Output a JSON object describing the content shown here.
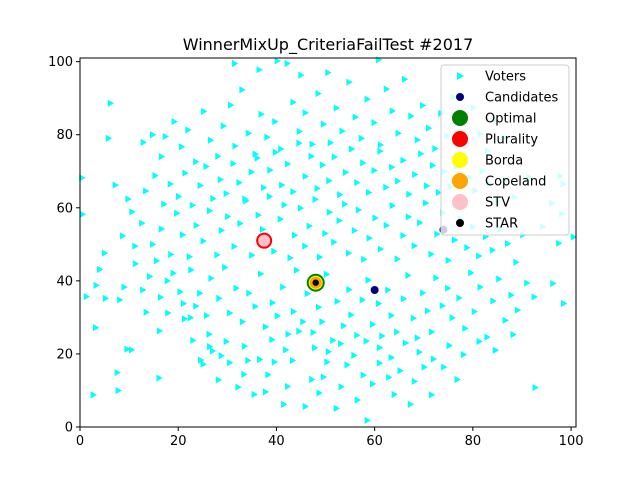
{
  "chart_data": {
    "type": "scatter",
    "title": "WinnerMixUp_CriteriaFailTest #2017",
    "xlabel": "",
    "ylabel": "",
    "xlim": [
      0,
      101
    ],
    "ylim": [
      0,
      101
    ],
    "xticks": [
      0,
      20,
      40,
      60,
      80,
      100
    ],
    "yticks": [
      0,
      20,
      40,
      60,
      80,
      100
    ],
    "grid": false,
    "legend_position": "top-right",
    "legend": [
      {
        "label": "Voters",
        "color": "#00ffff",
        "marker": "triangle-right"
      },
      {
        "label": "Candidates",
        "color": "#000080",
        "marker": "circle-small"
      },
      {
        "label": "Optimal",
        "color": "#008000",
        "marker": "circle-large"
      },
      {
        "label": "Plurality",
        "color": "#ff0000",
        "marker": "circle-large"
      },
      {
        "label": "Borda",
        "color": "#ffff00",
        "marker": "circle-large"
      },
      {
        "label": "Copeland",
        "color": "#ffa500",
        "marker": "circle-large"
      },
      {
        "label": "STV",
        "color": "#ffc0cb",
        "marker": "circle-large"
      },
      {
        "label": "STAR",
        "color": "#000000",
        "marker": "circle-small"
      }
    ],
    "candidates": [
      {
        "x": 37.5,
        "y": 51.0
      },
      {
        "x": 48.0,
        "y": 39.5
      },
      {
        "x": 60.0,
        "y": 37.5
      },
      {
        "x": 74.0,
        "y": 54.0
      }
    ],
    "winners": [
      {
        "method": "Optimal",
        "x": 48.0,
        "y": 39.5,
        "color": "#008000",
        "size": 9
      },
      {
        "method": "Plurality",
        "x": 37.5,
        "y": 51.0,
        "color": "#ff0000",
        "size": 8
      },
      {
        "method": "Borda",
        "x": 48.0,
        "y": 39.5,
        "color": "#ffff00",
        "size": 7
      },
      {
        "method": "Copeland",
        "x": 48.0,
        "y": 39.5,
        "color": "#ffa500",
        "size": 6
      },
      {
        "method": "STV",
        "x": 37.5,
        "y": 51.0,
        "color": "#ffc0cb",
        "size": 6
      },
      {
        "method": "STAR",
        "x": 48.0,
        "y": 39.5,
        "color": "#000000",
        "size": 3.2
      }
    ],
    "voters": [
      [
        2.7,
        8.8
      ],
      [
        7.6,
        14.9
      ],
      [
        9.6,
        21.3
      ],
      [
        10.5,
        21.1
      ],
      [
        13.5,
        31.4
      ],
      [
        16.2,
        26.3
      ],
      [
        16.4,
        35.5
      ],
      [
        17.9,
        31.2
      ],
      [
        21.3,
        29.6
      ],
      [
        22.5,
        29.9
      ],
      [
        23.0,
        23.7
      ],
      [
        24.6,
        18.3
      ],
      [
        25.1,
        17.2
      ],
      [
        26.4,
        22.0
      ],
      [
        27.0,
        20.8
      ],
      [
        28.2,
        12.9
      ],
      [
        28.8,
        19.5
      ],
      [
        30.5,
        17.6
      ],
      [
        32.2,
        10.9
      ],
      [
        33.4,
        14.4
      ],
      [
        34.2,
        18.2
      ],
      [
        35.5,
        8.9
      ],
      [
        37.8,
        9.6
      ],
      [
        38.3,
        14.3
      ],
      [
        39.6,
        17.8
      ],
      [
        41.5,
        6.2
      ],
      [
        42.3,
        11.1
      ],
      [
        43.3,
        18.2
      ],
      [
        45.9,
        5.6
      ],
      [
        47.2,
        13.0
      ],
      [
        48.7,
        9.3
      ],
      [
        49.6,
        13.7
      ],
      [
        50.3,
        17.8
      ],
      [
        52.2,
        5.1
      ],
      [
        53.2,
        11.0
      ],
      [
        54.4,
        17.0
      ],
      [
        56.5,
        7.4
      ],
      [
        57.7,
        14.2
      ],
      [
        58.5,
        1.8
      ],
      [
        59.6,
        11.8
      ],
      [
        61.0,
        17.5
      ],
      [
        62.9,
        13.6
      ],
      [
        64.0,
        8.9
      ],
      [
        65.2,
        15.4
      ],
      [
        67.3,
        6.2
      ],
      [
        68.1,
        12.5
      ],
      [
        70.1,
        16.4
      ],
      [
        71.6,
        8.8
      ],
      [
        74.1,
        16.4
      ],
      [
        76.8,
        13.0
      ],
      [
        1.3,
        35.7
      ],
      [
        3.3,
        38.8
      ],
      [
        4.0,
        43.1
      ],
      [
        5.2,
        35.2
      ],
      [
        8.1,
        34.8
      ],
      [
        9.0,
        38.3
      ],
      [
        11.3,
        44.7
      ],
      [
        12.8,
        37.5
      ],
      [
        14.2,
        41.2
      ],
      [
        15.6,
        45.5
      ],
      [
        17.8,
        40.0
      ],
      [
        19.0,
        42.1
      ],
      [
        20.4,
        37.0
      ],
      [
        21.1,
        33.8
      ],
      [
        22.6,
        43.0
      ],
      [
        24.4,
        36.6
      ],
      [
        25.8,
        30.5
      ],
      [
        26.7,
        40.7
      ],
      [
        28.3,
        35.2
      ],
      [
        29.5,
        43.7
      ],
      [
        30.5,
        31.2
      ],
      [
        31.8,
        38.0
      ],
      [
        33.1,
        28.8
      ],
      [
        34.4,
        36.6
      ],
      [
        35.7,
        33.0
      ],
      [
        36.8,
        41.9
      ],
      [
        37.8,
        27.4
      ],
      [
        39.2,
        34.0
      ],
      [
        40.2,
        30.4
      ],
      [
        41.3,
        38.3
      ],
      [
        42.4,
        25.4
      ],
      [
        43.5,
        31.6
      ],
      [
        44.1,
        42.9
      ],
      [
        45.4,
        28.8
      ],
      [
        46.3,
        36.5
      ],
      [
        47.8,
        21.7
      ],
      [
        48.6,
        32.8
      ],
      [
        49.3,
        28.8
      ],
      [
        50.2,
        41.8
      ],
      [
        51.5,
        23.7
      ],
      [
        52.4,
        34.4
      ],
      [
        53.7,
        27.7
      ],
      [
        54.8,
        37.6
      ],
      [
        55.2,
        30.7
      ],
      [
        56.4,
        25.1
      ],
      [
        57.5,
        34.8
      ],
      [
        58.7,
        40.2
      ],
      [
        59.6,
        28.1
      ],
      [
        60.8,
        33.8
      ],
      [
        61.5,
        24.9
      ],
      [
        62.7,
        37.5
      ],
      [
        63.4,
        30.5
      ],
      [
        64.5,
        26.0
      ],
      [
        65.9,
        35.1
      ],
      [
        66.8,
        41.5
      ],
      [
        67.9,
        29.8
      ],
      [
        68.7,
        24.4
      ],
      [
        69.8,
        36.7
      ],
      [
        70.8,
        31.8
      ],
      [
        71.6,
        26.0
      ],
      [
        72.5,
        40.8
      ],
      [
        73.8,
        33.2
      ],
      [
        74.9,
        38.0
      ],
      [
        75.8,
        29.9
      ],
      [
        77.2,
        35.3
      ],
      [
        78.4,
        27.0
      ],
      [
        79.6,
        42.2
      ],
      [
        80.3,
        31.6
      ],
      [
        81.5,
        38.3
      ],
      [
        82.9,
        24.6
      ],
      [
        84.1,
        34.5
      ],
      [
        85.3,
        40.5
      ],
      [
        86.6,
        29.2
      ],
      [
        87.8,
        36.1
      ],
      [
        89.1,
        32.0
      ],
      [
        91.0,
        39.4
      ],
      [
        92.5,
        35.6
      ],
      [
        5.0,
        47.6
      ],
      [
        8.7,
        52.3
      ],
      [
        11.2,
        49.5
      ],
      [
        12.6,
        55.8
      ],
      [
        14.8,
        50.0
      ],
      [
        16.6,
        54.2
      ],
      [
        18.5,
        47.2
      ],
      [
        19.7,
        58.5
      ],
      [
        20.9,
        52.6
      ],
      [
        22.3,
        46.6
      ],
      [
        23.7,
        55.2
      ],
      [
        25.1,
        50.9
      ],
      [
        26.4,
        59.2
      ],
      [
        27.9,
        47.1
      ],
      [
        28.8,
        53.8
      ],
      [
        30.1,
        57.6
      ],
      [
        31.4,
        49.4
      ],
      [
        32.6,
        55.7
      ],
      [
        33.8,
        61.9
      ],
      [
        35.0,
        47.0
      ],
      [
        36.3,
        58.0
      ],
      [
        37.2,
        54.1
      ],
      [
        38.6,
        63.1
      ],
      [
        39.5,
        48.1
      ],
      [
        40.8,
        56.9
      ],
      [
        41.6,
        60.8
      ],
      [
        42.8,
        46.3
      ],
      [
        43.7,
        52.5
      ],
      [
        44.9,
        59.9
      ],
      [
        45.8,
        49.5
      ],
      [
        46.7,
        55.0
      ],
      [
        47.9,
        62.3
      ],
      [
        48.8,
        46.5
      ],
      [
        49.9,
        53.0
      ],
      [
        50.8,
        58.8
      ],
      [
        51.7,
        50.6
      ],
      [
        52.8,
        56.5
      ],
      [
        53.9,
        61.0
      ],
      [
        54.7,
        47.6
      ],
      [
        55.9,
        53.8
      ],
      [
        56.7,
        59.4
      ],
      [
        57.8,
        45.9
      ],
      [
        58.9,
        51.7
      ],
      [
        60.1,
        57.2
      ],
      [
        61.2,
        48.7
      ],
      [
        62.4,
        55.2
      ],
      [
        63.6,
        60.6
      ],
      [
        64.6,
        46.0
      ],
      [
        65.8,
        52.4
      ],
      [
        66.9,
        57.5
      ],
      [
        68.1,
        49.6
      ],
      [
        69.2,
        55.9
      ],
      [
        70.4,
        61.3
      ],
      [
        71.5,
        47.3
      ],
      [
        72.7,
        52.8
      ],
      [
        73.9,
        58.6
      ],
      [
        75.0,
        45.6
      ],
      [
        76.3,
        51.2
      ],
      [
        77.5,
        57.0
      ],
      [
        78.8,
        49.1
      ],
      [
        80.0,
        54.8
      ],
      [
        81.2,
        46.8
      ],
      [
        82.6,
        52.1
      ],
      [
        84.0,
        48.4
      ],
      [
        85.6,
        54.0
      ],
      [
        87.1,
        50.2
      ],
      [
        88.8,
        45.1
      ],
      [
        90.2,
        52.6
      ],
      [
        94.2,
        54.8
      ],
      [
        97.5,
        50.3
      ],
      [
        100.5,
        52.0
      ],
      [
        0.5,
        58.2
      ],
      [
        7.2,
        66.2
      ],
      [
        9.8,
        62.4
      ],
      [
        10.6,
        58.9
      ],
      [
        13.4,
        64.6
      ],
      [
        15.3,
        68.8
      ],
      [
        17.1,
        61.0
      ],
      [
        18.4,
        66.5
      ],
      [
        20.1,
        63.1
      ],
      [
        21.4,
        69.5
      ],
      [
        22.9,
        60.7
      ],
      [
        24.5,
        66.1
      ],
      [
        25.7,
        71.3
      ],
      [
        27.1,
        62.5
      ],
      [
        28.6,
        67.7
      ],
      [
        29.8,
        63.9
      ],
      [
        31.2,
        72.1
      ],
      [
        32.4,
        66.9
      ],
      [
        33.6,
        62.4
      ],
      [
        34.9,
        69.8
      ],
      [
        36.1,
        73.6
      ],
      [
        37.4,
        65.5
      ],
      [
        38.7,
        70.3
      ],
      [
        39.8,
        75.2
      ],
      [
        41.1,
        66.2
      ],
      [
        42.3,
        72.0
      ],
      [
        43.4,
        64.4
      ],
      [
        44.6,
        77.7
      ],
      [
        45.9,
        68.6
      ],
      [
        47.1,
        74.1
      ],
      [
        48.3,
        65.3
      ],
      [
        49.4,
        71.7
      ],
      [
        50.7,
        67.4
      ],
      [
        51.8,
        73.9
      ],
      [
        52.9,
        63.6
      ],
      [
        54.1,
        69.7
      ],
      [
        55.3,
        76.1
      ],
      [
        56.4,
        66.9
      ],
      [
        57.6,
        72.3
      ],
      [
        58.8,
        64.2
      ],
      [
        59.9,
        70.2
      ],
      [
        61.1,
        75.5
      ],
      [
        62.3,
        65.6
      ],
      [
        63.5,
        71.1
      ],
      [
        64.7,
        67.3
      ],
      [
        65.8,
        73.0
      ],
      [
        67.0,
        63.7
      ],
      [
        68.2,
        69.1
      ],
      [
        69.4,
        74.8
      ],
      [
        70.6,
        66.0
      ],
      [
        71.8,
        71.6
      ],
      [
        73.0,
        64.2
      ],
      [
        74.2,
        69.9
      ],
      [
        75.4,
        65.8
      ],
      [
        76.7,
        71.4
      ],
      [
        78.0,
        62.8
      ],
      [
        79.3,
        68.3
      ],
      [
        80.5,
        64.7
      ],
      [
        81.9,
        70.0
      ],
      [
        83.4,
        66.4
      ],
      [
        85.0,
        61.7
      ],
      [
        86.7,
        67.6
      ],
      [
        88.4,
        63.0
      ],
      [
        91.4,
        68.4
      ],
      [
        97.8,
        68.7
      ],
      [
        98.4,
        66.5
      ],
      [
        0.4,
        68.2
      ],
      [
        5.8,
        79.0
      ],
      [
        6.2,
        88.6
      ],
      [
        12.9,
        77.9
      ],
      [
        14.8,
        80.0
      ],
      [
        16.6,
        74.0
      ],
      [
        17.4,
        79.5
      ],
      [
        19.2,
        83.6
      ],
      [
        20.7,
        76.7
      ],
      [
        22.0,
        81.3
      ],
      [
        23.6,
        72.6
      ],
      [
        25.2,
        86.4
      ],
      [
        26.6,
        78.5
      ],
      [
        28.1,
        74.1
      ],
      [
        29.2,
        82.4
      ],
      [
        30.7,
        88.1
      ],
      [
        31.6,
        76.9
      ],
      [
        33.0,
        92.3
      ],
      [
        34.3,
        80.4
      ],
      [
        35.7,
        74.7
      ],
      [
        36.9,
        85.6
      ],
      [
        38.1,
        79.3
      ],
      [
        39.7,
        83.6
      ],
      [
        40.9,
        76.1
      ],
      [
        42.2,
        99.5
      ],
      [
        43.4,
        88.9
      ],
      [
        44.7,
        80.9
      ],
      [
        45.9,
        86.0
      ],
      [
        47.3,
        77.4
      ],
      [
        48.5,
        91.3
      ],
      [
        49.6,
        82.9
      ],
      [
        51.0,
        77.8
      ],
      [
        52.2,
        87.3
      ],
      [
        53.4,
        81.0
      ],
      [
        54.8,
        94.4
      ],
      [
        56.1,
        84.8
      ],
      [
        57.3,
        79.0
      ],
      [
        58.5,
        89.7
      ],
      [
        59.9,
        83.3
      ],
      [
        61.2,
        77.2
      ],
      [
        62.4,
        92.5
      ],
      [
        63.6,
        86.5
      ],
      [
        64.8,
        80.4
      ],
      [
        66.1,
        95.2
      ],
      [
        67.4,
        85.1
      ],
      [
        68.7,
        78.6
      ],
      [
        69.8,
        88.0
      ],
      [
        71.0,
        81.8
      ],
      [
        72.3,
        76.2
      ],
      [
        73.5,
        85.8
      ],
      [
        74.8,
        79.7
      ],
      [
        76.0,
        90.3
      ],
      [
        77.3,
        83.2
      ],
      [
        78.7,
        77.0
      ],
      [
        80.1,
        87.4
      ],
      [
        81.5,
        80.3
      ],
      [
        83.0,
        75.6
      ],
      [
        84.6,
        84.0
      ],
      [
        86.3,
        79.2
      ],
      [
        31.5,
        99.5
      ],
      [
        36.5,
        97.8
      ],
      [
        40.2,
        100.2
      ],
      [
        45.0,
        96.3
      ],
      [
        50.5,
        97.0
      ],
      [
        60.8,
        100.5
      ],
      [
        3.2,
        27.2
      ],
      [
        7.8,
        10.0
      ],
      [
        16.1,
        13.4
      ],
      [
        23.6,
        33.1
      ],
      [
        26.3,
        25.4
      ],
      [
        29.8,
        23.4
      ],
      [
        33.5,
        22.1
      ],
      [
        36.6,
        18.5
      ],
      [
        39.1,
        23.9
      ],
      [
        41.9,
        21.1
      ],
      [
        44.6,
        26.2
      ],
      [
        47.5,
        25.9
      ],
      [
        50.6,
        20.6
      ],
      [
        53.1,
        22.8
      ],
      [
        55.8,
        19.6
      ],
      [
        58.3,
        23.5
      ],
      [
        61.0,
        21.7
      ],
      [
        63.4,
        19.0
      ],
      [
        66.3,
        23.0
      ],
      [
        69.1,
        20.5
      ],
      [
        72.0,
        18.6
      ],
      [
        75.2,
        22.3
      ],
      [
        78.1,
        19.8
      ],
      [
        81.3,
        23.4
      ],
      [
        84.6,
        21.0
      ],
      [
        88.2,
        25.3
      ],
      [
        92.7,
        10.8
      ],
      [
        96.3,
        39.3
      ],
      [
        98.5,
        33.8
      ],
      [
        96.1,
        61.3
      ],
      [
        98.1,
        58.3
      ]
    ]
  }
}
